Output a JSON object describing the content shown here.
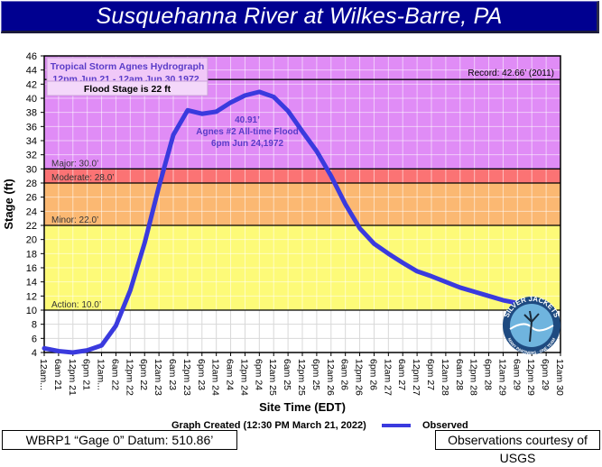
{
  "header": {
    "title": "Susquehanna River at Wilkes-Barre, PA"
  },
  "annotations": {
    "hydrograph_title_line1": "Tropical Storm Agnes Hydrograph",
    "hydrograph_title_line2": "12pm Jun 21 - 12am Jun 30 1972.",
    "flood_stage_note": "Flood Stage is 22 ft",
    "record": "Record: 42.66’ (2011)",
    "peak_value": "40.91’",
    "peak_label": "Agnes #2 All-time Flood",
    "peak_time": "6pm Jun 24,1972",
    "major": "Major: 30.0’",
    "moderate": "Moderate: 28.0’",
    "minor": "Minor: 22.0’",
    "action": "Action: 10.0’"
  },
  "footer": {
    "graph_created": "Graph Created (12:30 PM March 21, 2022)",
    "legend_observed": "Observed",
    "datum": "WBRP1 “Gage 0” Datum: 510.86’",
    "courtesy": "Observations courtesy of USGS"
  },
  "logo": {
    "name": "Silver Jackets",
    "text_top": "SILVER JACKETS",
    "text_bottom": "MANY PARTNERS · ONE TEAM"
  },
  "colors": {
    "title_bg": "#000090",
    "major_zone": "#e08cf6",
    "moderate_zone": "#fb7374",
    "minor_zone": "#fbb872",
    "action_zone": "#fdfa78",
    "normal_zone": "#ffffff",
    "line": "#3a3ade",
    "annotation_text": "#5a3cc8"
  },
  "chart_data": {
    "type": "line",
    "title": "Susquehanna River at Wilkes-Barre, PA",
    "subtitle": "Tropical Storm Agnes Hydrograph 12pm Jun 21 - 12am Jun 30 1972.",
    "xlabel": "Site Time (EDT)",
    "ylabel": "Stage (ft)",
    "ylim": [
      4,
      46
    ],
    "yticks": [
      4,
      6,
      8,
      10,
      12,
      14,
      16,
      18,
      20,
      22,
      24,
      26,
      28,
      30,
      32,
      34,
      36,
      38,
      40,
      42,
      44,
      46
    ],
    "grid": true,
    "legend": {
      "position": "bottom",
      "entries": [
        "Observed"
      ]
    },
    "categories": [
      "12am...",
      "6am 21",
      "12pm 21",
      "6pm 21",
      "12am...",
      "6am 22",
      "12pm 22",
      "6pm 22",
      "12am 23",
      "6am 23",
      "12pm 23",
      "6pm 23",
      "12am 24",
      "6am 24",
      "12pm 24",
      "6pm 24",
      "12am 25",
      "6am 25",
      "12pm 25",
      "6pm 25",
      "12am 26",
      "6am 26",
      "12pm 26",
      "6pm 26",
      "12am 27",
      "6am 27",
      "12pm 27",
      "6pm 27",
      "12am 28",
      "6am 28",
      "12pm 28",
      "6pm 28",
      "12am 29",
      "6am 29",
      "12pm 29",
      "6pm 29",
      "12am 30"
    ],
    "series": [
      {
        "name": "Observed",
        "values": [
          4.6,
          4.2,
          4.0,
          4.3,
          5.0,
          7.8,
          12.8,
          19.5,
          27.5,
          34.8,
          38.3,
          37.8,
          38.1,
          39.4,
          40.4,
          40.91,
          40.2,
          38.2,
          35.3,
          32.5,
          29.0,
          25.0,
          21.6,
          19.4,
          18.0,
          16.7,
          15.5,
          14.8,
          14.0,
          13.2,
          12.6,
          12.0,
          11.4,
          11.0
        ]
      }
    ],
    "thresholds": [
      {
        "name": "Record",
        "value": 42.66
      },
      {
        "name": "Major",
        "value": 30.0
      },
      {
        "name": "Moderate",
        "value": 28.0
      },
      {
        "name": "Minor",
        "value": 22.0
      },
      {
        "name": "Action",
        "value": 10.0
      }
    ],
    "annotations": [
      {
        "text": "40.91’ Agnes #2 All-time Flood 6pm Jun 24,1972",
        "x": "6pm 24",
        "y": 40.91
      }
    ]
  }
}
